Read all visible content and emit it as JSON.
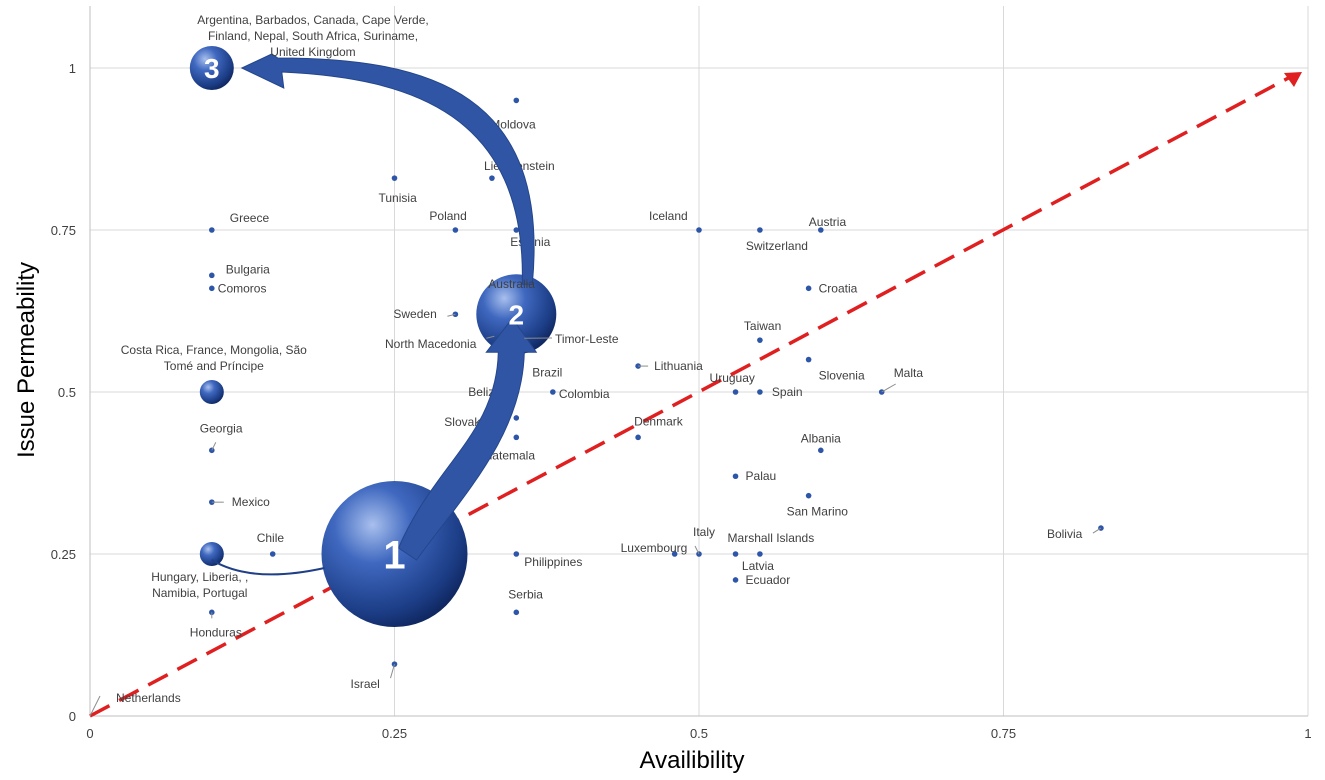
{
  "chart_data": {
    "type": "scatter",
    "title": "",
    "xlabel": "Availibility",
    "ylabel": "Issue Permeability",
    "xlim": [
      0,
      1
    ],
    "ylim": [
      0,
      1.05
    ],
    "x_ticks": [
      "0",
      "0.25",
      "0.5",
      "0.75",
      "1"
    ],
    "y_ticks": [
      "0",
      "0.25",
      "0.5",
      "0.75",
      "1"
    ],
    "grid": true,
    "reference_line": {
      "from": [
        0,
        0
      ],
      "to": [
        1,
        1
      ],
      "style": "dashed",
      "color": "#e02020"
    },
    "point_color": "#2e56a8",
    "points": [
      {
        "label": "Netherlands",
        "x": 0.0,
        "y": 0.0
      },
      {
        "label": "Greece",
        "x": 0.1,
        "y": 0.75
      },
      {
        "label": "Bulgaria",
        "x": 0.1,
        "y": 0.68
      },
      {
        "label": "Comoros",
        "x": 0.1,
        "y": 0.66
      },
      {
        "label": "Georgia",
        "x": 0.1,
        "y": 0.41
      },
      {
        "label": "Mexico",
        "x": 0.1,
        "y": 0.33
      },
      {
        "label": "Honduras",
        "x": 0.1,
        "y": 0.16
      },
      {
        "label": "Chile",
        "x": 0.15,
        "y": 0.25
      },
      {
        "label": "Tunisia",
        "x": 0.25,
        "y": 0.83
      },
      {
        "label": "Israel",
        "x": 0.25,
        "y": 0.08
      },
      {
        "label": "Poland",
        "x": 0.3,
        "y": 0.75
      },
      {
        "label": "Sweden",
        "x": 0.3,
        "y": 0.62
      },
      {
        "label": "Liechtenstein",
        "x": 0.33,
        "y": 0.83
      },
      {
        "label": "Moldova",
        "x": 0.35,
        "y": 0.95
      },
      {
        "label": "Estonia",
        "x": 0.35,
        "y": 0.75
      },
      {
        "label": "Brazil",
        "x": 0.35,
        "y": 0.53
      },
      {
        "label": "Belize",
        "x": 0.35,
        "y": 0.5
      },
      {
        "label": "Slovakia",
        "x": 0.35,
        "y": 0.46
      },
      {
        "label": "Guatemala",
        "x": 0.35,
        "y": 0.43
      },
      {
        "label": "Philippines",
        "x": 0.35,
        "y": 0.25
      },
      {
        "label": "Serbia",
        "x": 0.35,
        "y": 0.16
      },
      {
        "label": "Colombia",
        "x": 0.38,
        "y": 0.5
      },
      {
        "label": "Lithuania",
        "x": 0.45,
        "y": 0.54
      },
      {
        "label": "Denmark",
        "x": 0.45,
        "y": 0.43
      },
      {
        "label": "Luxembourg",
        "x": 0.48,
        "y": 0.25
      },
      {
        "label": "Iceland",
        "x": 0.5,
        "y": 0.75
      },
      {
        "label": "Italy",
        "x": 0.5,
        "y": 0.25
      },
      {
        "label": "Uruguay",
        "x": 0.53,
        "y": 0.5
      },
      {
        "label": "Palau",
        "x": 0.53,
        "y": 0.37
      },
      {
        "label": "Marshall Islands",
        "x": 0.53,
        "y": 0.25
      },
      {
        "label": "Ecuador",
        "x": 0.53,
        "y": 0.21
      },
      {
        "label": "Switzerland",
        "x": 0.55,
        "y": 0.75
      },
      {
        "label": "Taiwan",
        "x": 0.55,
        "y": 0.58
      },
      {
        "label": "Spain",
        "x": 0.55,
        "y": 0.5
      },
      {
        "label": "Latvia",
        "x": 0.55,
        "y": 0.25
      },
      {
        "label": "Croatia",
        "x": 0.59,
        "y": 0.66
      },
      {
        "label": "Slovenia",
        "x": 0.59,
        "y": 0.55
      },
      {
        "label": "San Marino",
        "x": 0.59,
        "y": 0.34
      },
      {
        "label": "Austria",
        "x": 0.6,
        "y": 0.75
      },
      {
        "label": "Albania",
        "x": 0.6,
        "y": 0.41
      },
      {
        "label": "Malta",
        "x": 0.65,
        "y": 0.5
      },
      {
        "label": "Bolivia",
        "x": 0.83,
        "y": 0.29
      }
    ],
    "bubbles": [
      {
        "number": "1",
        "label": "",
        "x": 0.25,
        "y": 0.25,
        "size": "large"
      },
      {
        "number": "2",
        "label": "Australia",
        "x": 0.35,
        "y": 0.62,
        "size": "medium"
      },
      {
        "number": "3",
        "label": "Argentina, Barbados, Canada, Cape Verde, Finland, Nepal, South Africa, Suriname, United Kingdom",
        "x": 0.1,
        "y": 1.0,
        "size": "small"
      },
      {
        "number": "",
        "label": "Costa Rica, France, Mongolia, São Tomé and Príncipe",
        "x": 0.1,
        "y": 0.5,
        "size": "tiny"
      },
      {
        "number": "",
        "label": "Hungary, Liberia, , Namibia, Portugal",
        "x": 0.1,
        "y": 0.25,
        "size": "tiny"
      }
    ],
    "annotations": [
      {
        "label": "North Macedonia"
      },
      {
        "label": "Timor-Leste"
      }
    ],
    "arrows": [
      {
        "from": "1",
        "to": "2",
        "style": "curved"
      },
      {
        "from": "2",
        "to": "3",
        "style": "curved"
      }
    ]
  }
}
